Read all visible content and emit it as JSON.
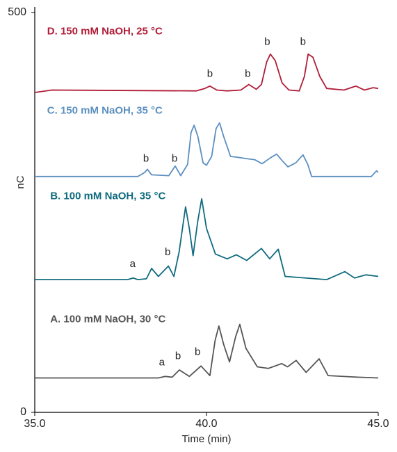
{
  "chart_data": {
    "type": "line",
    "xlabel": "Time (min)",
    "ylabel": "nC",
    "xlim": [
      35,
      45
    ],
    "xticks": [
      {
        "value": 35,
        "label": "35.0"
      },
      {
        "value": 40,
        "label": "40.0"
      },
      {
        "value": 45,
        "label": "45.0"
      }
    ],
    "ylim": [
      0,
      500
    ],
    "yticks": [
      0,
      500
    ],
    "series": [
      {
        "name": "D. 150 mM NaOH, 25 °C",
        "color": "#b01c37",
        "name_xy": [
          35.36,
          476
        ],
        "x": [
          35,
          35.5,
          39.7,
          39.95,
          40.1,
          40.3,
          40.6,
          41.0,
          41.23,
          41.45,
          41.6,
          41.75,
          41.86,
          42.0,
          42.2,
          42.4,
          42.7,
          42.85,
          42.96,
          43.1,
          43.3,
          43.5,
          44.0,
          44.35,
          44.6,
          44.85,
          45
        ],
        "values": [
          400,
          403,
          402,
          405,
          408,
          403,
          402,
          403,
          410,
          404,
          410,
          438,
          448,
          440,
          412,
          403,
          402,
          420,
          448,
          444,
          420,
          405,
          403,
          408,
          403,
          406,
          405
        ],
        "peaks": [
          {
            "text": "b",
            "x": 40.1,
            "y": 423
          },
          {
            "text": "b",
            "x": 41.2,
            "y": 423
          },
          {
            "text": "b",
            "x": 41.77,
            "y": 463
          },
          {
            "text": "b",
            "x": 42.81,
            "y": 463
          }
        ]
      },
      {
        "name": "C. 150 mM NaOH, 35 °C",
        "color": "#5b8fbf",
        "name_xy": [
          35.36,
          377
        ],
        "x": [
          35,
          38.0,
          38.2,
          38.28,
          38.4,
          38.9,
          39.09,
          39.25,
          39.45,
          39.55,
          39.64,
          39.75,
          39.9,
          40.0,
          40.15,
          40.28,
          40.38,
          40.5,
          40.7,
          40.9,
          41.2,
          41.4,
          41.62,
          41.85,
          42.04,
          42.2,
          42.37,
          42.6,
          42.81,
          42.95,
          43.06,
          44.0,
          44.8,
          44.95,
          45
        ],
        "values": [
          295,
          295,
          300,
          304,
          297,
          296,
          308,
          296,
          310,
          350,
          359,
          345,
          312,
          309,
          320,
          355,
          362,
          345,
          320,
          319,
          317,
          316,
          311,
          318,
          323,
          315,
          307,
          312,
          322,
          310,
          295,
          295,
          295,
          302,
          300
        ],
        "peaks": [
          {
            "text": "b",
            "x": 38.24,
            "y": 317
          },
          {
            "text": "b",
            "x": 39.07,
            "y": 317
          }
        ]
      },
      {
        "name": "B. 100 mM NaOH, 35 °C",
        "color": "#0f6b7e",
        "name_xy": [
          35.45,
          270
        ],
        "x": [
          35,
          37.7,
          37.87,
          38.0,
          38.25,
          38.4,
          38.6,
          38.89,
          39.05,
          39.2,
          39.39,
          39.5,
          39.61,
          39.75,
          39.86,
          40.0,
          40.26,
          40.6,
          40.87,
          41.17,
          41.6,
          41.84,
          42.09,
          42.29,
          43.5,
          44.03,
          44.31,
          44.64,
          45
        ],
        "values": [
          166,
          166,
          168,
          166,
          167,
          180,
          170,
          183,
          170,
          200,
          257,
          230,
          196,
          240,
          267,
          230,
          198,
          192,
          197,
          190,
          205,
          192,
          204,
          170,
          166,
          176,
          168,
          172,
          170
        ],
        "peaks": [
          {
            "text": "a",
            "x": 37.85,
            "y": 185
          },
          {
            "text": "b",
            "x": 38.87,
            "y": 200
          }
        ]
      },
      {
        "name": "A. 100 mM NaOH, 30 °C",
        "color": "#555555",
        "name_xy": [
          35.45,
          116
        ],
        "x": [
          35,
          38.6,
          38.8,
          39.0,
          39.21,
          39.5,
          39.84,
          40.1,
          40.25,
          40.36,
          40.5,
          40.67,
          40.85,
          40.97,
          41.15,
          41.48,
          41.8,
          42.19,
          42.36,
          42.61,
          42.9,
          43.28,
          43.54,
          44.4,
          45
        ],
        "values": [
          43,
          43,
          45,
          44,
          53,
          45,
          58,
          46,
          90,
          108,
          85,
          63,
          95,
          110,
          80,
          57,
          55,
          61,
          57,
          65,
          50,
          67,
          46,
          44,
          43
        ],
        "peaks": [
          {
            "text": "a",
            "x": 38.7,
            "y": 62
          },
          {
            "text": "b",
            "x": 39.17,
            "y": 70
          },
          {
            "text": "b",
            "x": 39.74,
            "y": 75
          }
        ]
      }
    ]
  }
}
